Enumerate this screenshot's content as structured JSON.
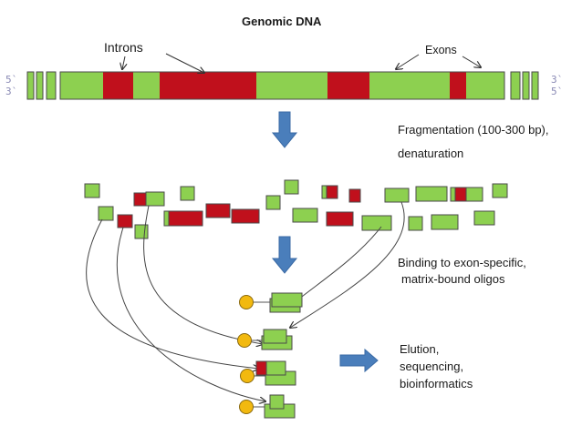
{
  "title": "Genomic DNA",
  "labels": {
    "introns": "Introns",
    "exons": "Exons"
  },
  "strand_left": {
    "top": "5`",
    "bottom": "3`"
  },
  "strand_right": {
    "top": "3`",
    "bottom": "5`"
  },
  "steps": {
    "fragmentation_line1": "Fragmentation (100-300 bp),",
    "fragmentation_line2": "denaturation",
    "binding_line1": "Binding to exon-specific,",
    "binding_line2": "matrix-bound oligos",
    "elution_line1": "Elution,",
    "elution_line2": "sequencing,",
    "elution_line3": "bioinformatics"
  },
  "colors": {
    "exon": "#8dd050",
    "intron": "#c0101c",
    "outline": "#4a4a4a",
    "process_arrow": "#4a7ebb",
    "bead": "#f2b90f"
  }
}
